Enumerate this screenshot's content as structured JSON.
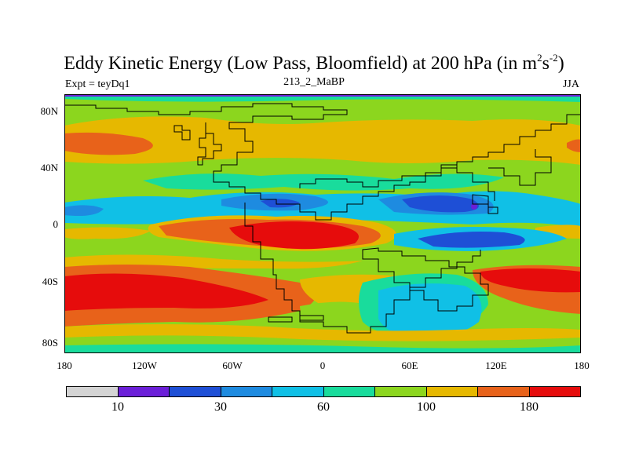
{
  "title": {
    "main": "Eddy Kinetic Energy (Low Pass, Bloomfield) at 200 hPa (in m",
    "sup1": "2",
    "mid": "s",
    "sup2": "-2",
    "end": ")"
  },
  "subtitle": {
    "left": "Expt = teyDq1",
    "center": "213_2_MaBP",
    "right": "JJA"
  },
  "lat_ticks": [
    "80N",
    "40N",
    "0",
    "40S",
    "80S"
  ],
  "lon_ticks": [
    "180",
    "120W",
    "60W",
    "0",
    "60E",
    "120E",
    "180"
  ],
  "colorbar": {
    "colors": [
      "#d4d4d4",
      "#6b1fd8",
      "#1e4fd6",
      "#1e8be0",
      "#10c0e6",
      "#19dc9c",
      "#8cd61e",
      "#e6b800",
      "#e8621a",
      "#e60c0c"
    ],
    "labels": [
      "10",
      "30",
      "60",
      "100",
      "180"
    ]
  }
}
